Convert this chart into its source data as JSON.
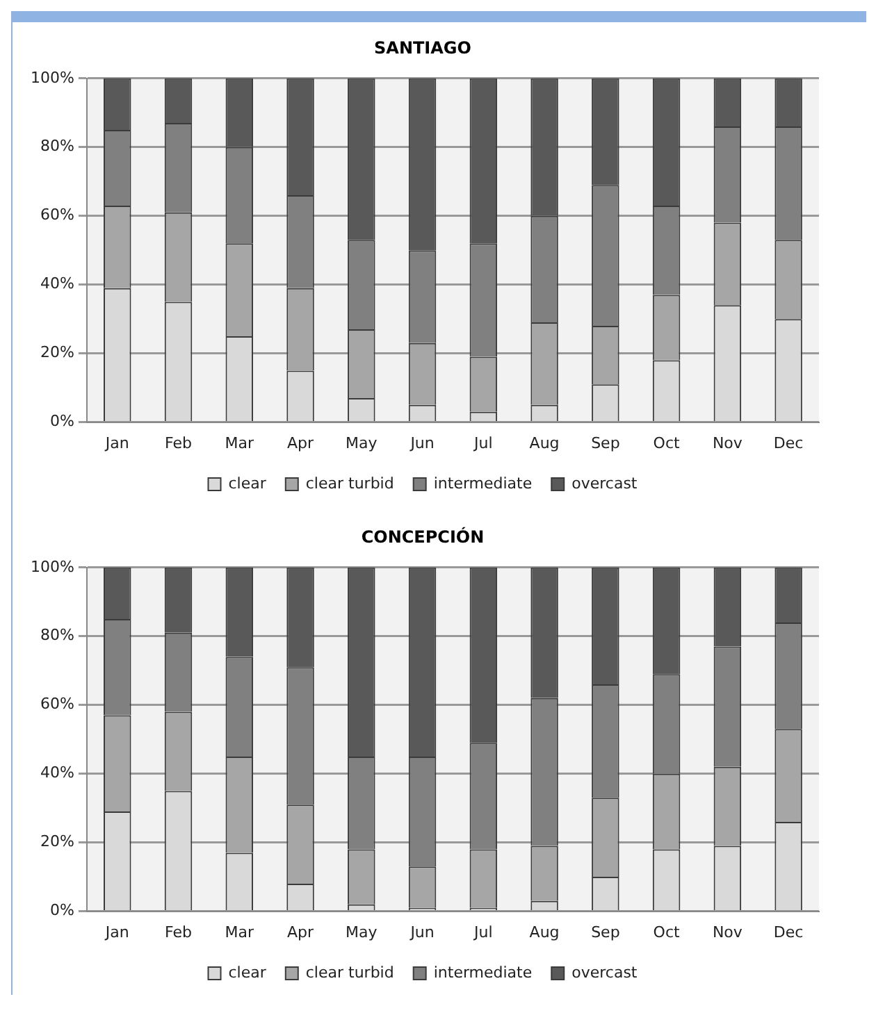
{
  "chart_data": [
    {
      "type": "bar",
      "title": "SANTIAGO",
      "stacked": true,
      "categories": [
        "Jan",
        "Feb",
        "Mar",
        "Apr",
        "May",
        "Jun",
        "Jul",
        "Aug",
        "Sep",
        "Oct",
        "Nov",
        "Dec"
      ],
      "series": [
        {
          "name": "clear",
          "color": "#d9d9d9",
          "values": [
            39,
            35,
            25,
            15,
            7,
            5,
            3,
            5,
            11,
            18,
            34,
            30
          ]
        },
        {
          "name": "clear turbid",
          "color": "#a6a6a6",
          "values": [
            24,
            26,
            27,
            24,
            20,
            18,
            16,
            24,
            17,
            19,
            24,
            23
          ]
        },
        {
          "name": "intermediate",
          "color": "#808080",
          "values": [
            22,
            26,
            28,
            27,
            26,
            27,
            33,
            31,
            41,
            26,
            28,
            33
          ]
        },
        {
          "name": "overcast",
          "color": "#595959",
          "values": [
            15,
            13,
            20,
            34,
            47,
            50,
            48,
            40,
            31,
            37,
            14,
            14
          ]
        }
      ],
      "ylim": [
        0,
        100
      ],
      "yticks": [
        {
          "value": 0,
          "label": "0%"
        },
        {
          "value": 20,
          "label": "20%"
        },
        {
          "value": 40,
          "label": "40%"
        },
        {
          "value": 60,
          "label": "60%"
        },
        {
          "value": 80,
          "label": "80%"
        },
        {
          "value": 100,
          "label": "100%"
        }
      ],
      "grid": "y",
      "legend": "bottom"
    },
    {
      "type": "bar",
      "title": "CONCEPCIÓN",
      "stacked": true,
      "categories": [
        "Jan",
        "Feb",
        "Mar",
        "Apr",
        "May",
        "Jun",
        "Jul",
        "Aug",
        "Sep",
        "Oct",
        "Nov",
        "Dec"
      ],
      "series": [
        {
          "name": "clear",
          "color": "#d9d9d9",
          "values": [
            29,
            35,
            17,
            8,
            2,
            1,
            1,
            3,
            10,
            18,
            19,
            26
          ]
        },
        {
          "name": "clear turbid",
          "color": "#a6a6a6",
          "values": [
            28,
            23,
            28,
            23,
            16,
            12,
            17,
            16,
            23,
            22,
            23,
            27
          ]
        },
        {
          "name": "intermediate",
          "color": "#808080",
          "values": [
            28,
            23,
            29,
            40,
            27,
            32,
            31,
            43,
            33,
            29,
            35,
            31
          ]
        },
        {
          "name": "overcast",
          "color": "#595959",
          "values": [
            15,
            19,
            26,
            29,
            55,
            55,
            51,
            38,
            34,
            31,
            23,
            16
          ]
        }
      ],
      "ylim": [
        0,
        100
      ],
      "yticks": [
        {
          "value": 0,
          "label": "0%"
        },
        {
          "value": 20,
          "label": "20%"
        },
        {
          "value": 40,
          "label": "40%"
        },
        {
          "value": 60,
          "label": "60%"
        },
        {
          "value": 80,
          "label": "80%"
        },
        {
          "value": 100,
          "label": "100%"
        }
      ],
      "grid": "y",
      "legend": "bottom"
    }
  ]
}
